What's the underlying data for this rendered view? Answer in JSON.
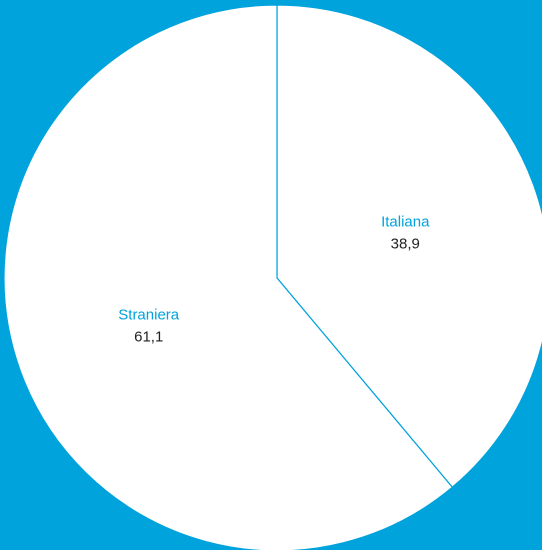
{
  "chart_data": {
    "type": "pie",
    "categories": [
      "Italiana",
      "Straniera"
    ],
    "values": [
      38.9,
      61.1
    ],
    "value_labels": [
      "38,9",
      "61,1"
    ],
    "colors": [
      "#ffffff",
      "#ffffff"
    ],
    "background": "#00a3dc",
    "edge_color": "#00a3dc"
  }
}
